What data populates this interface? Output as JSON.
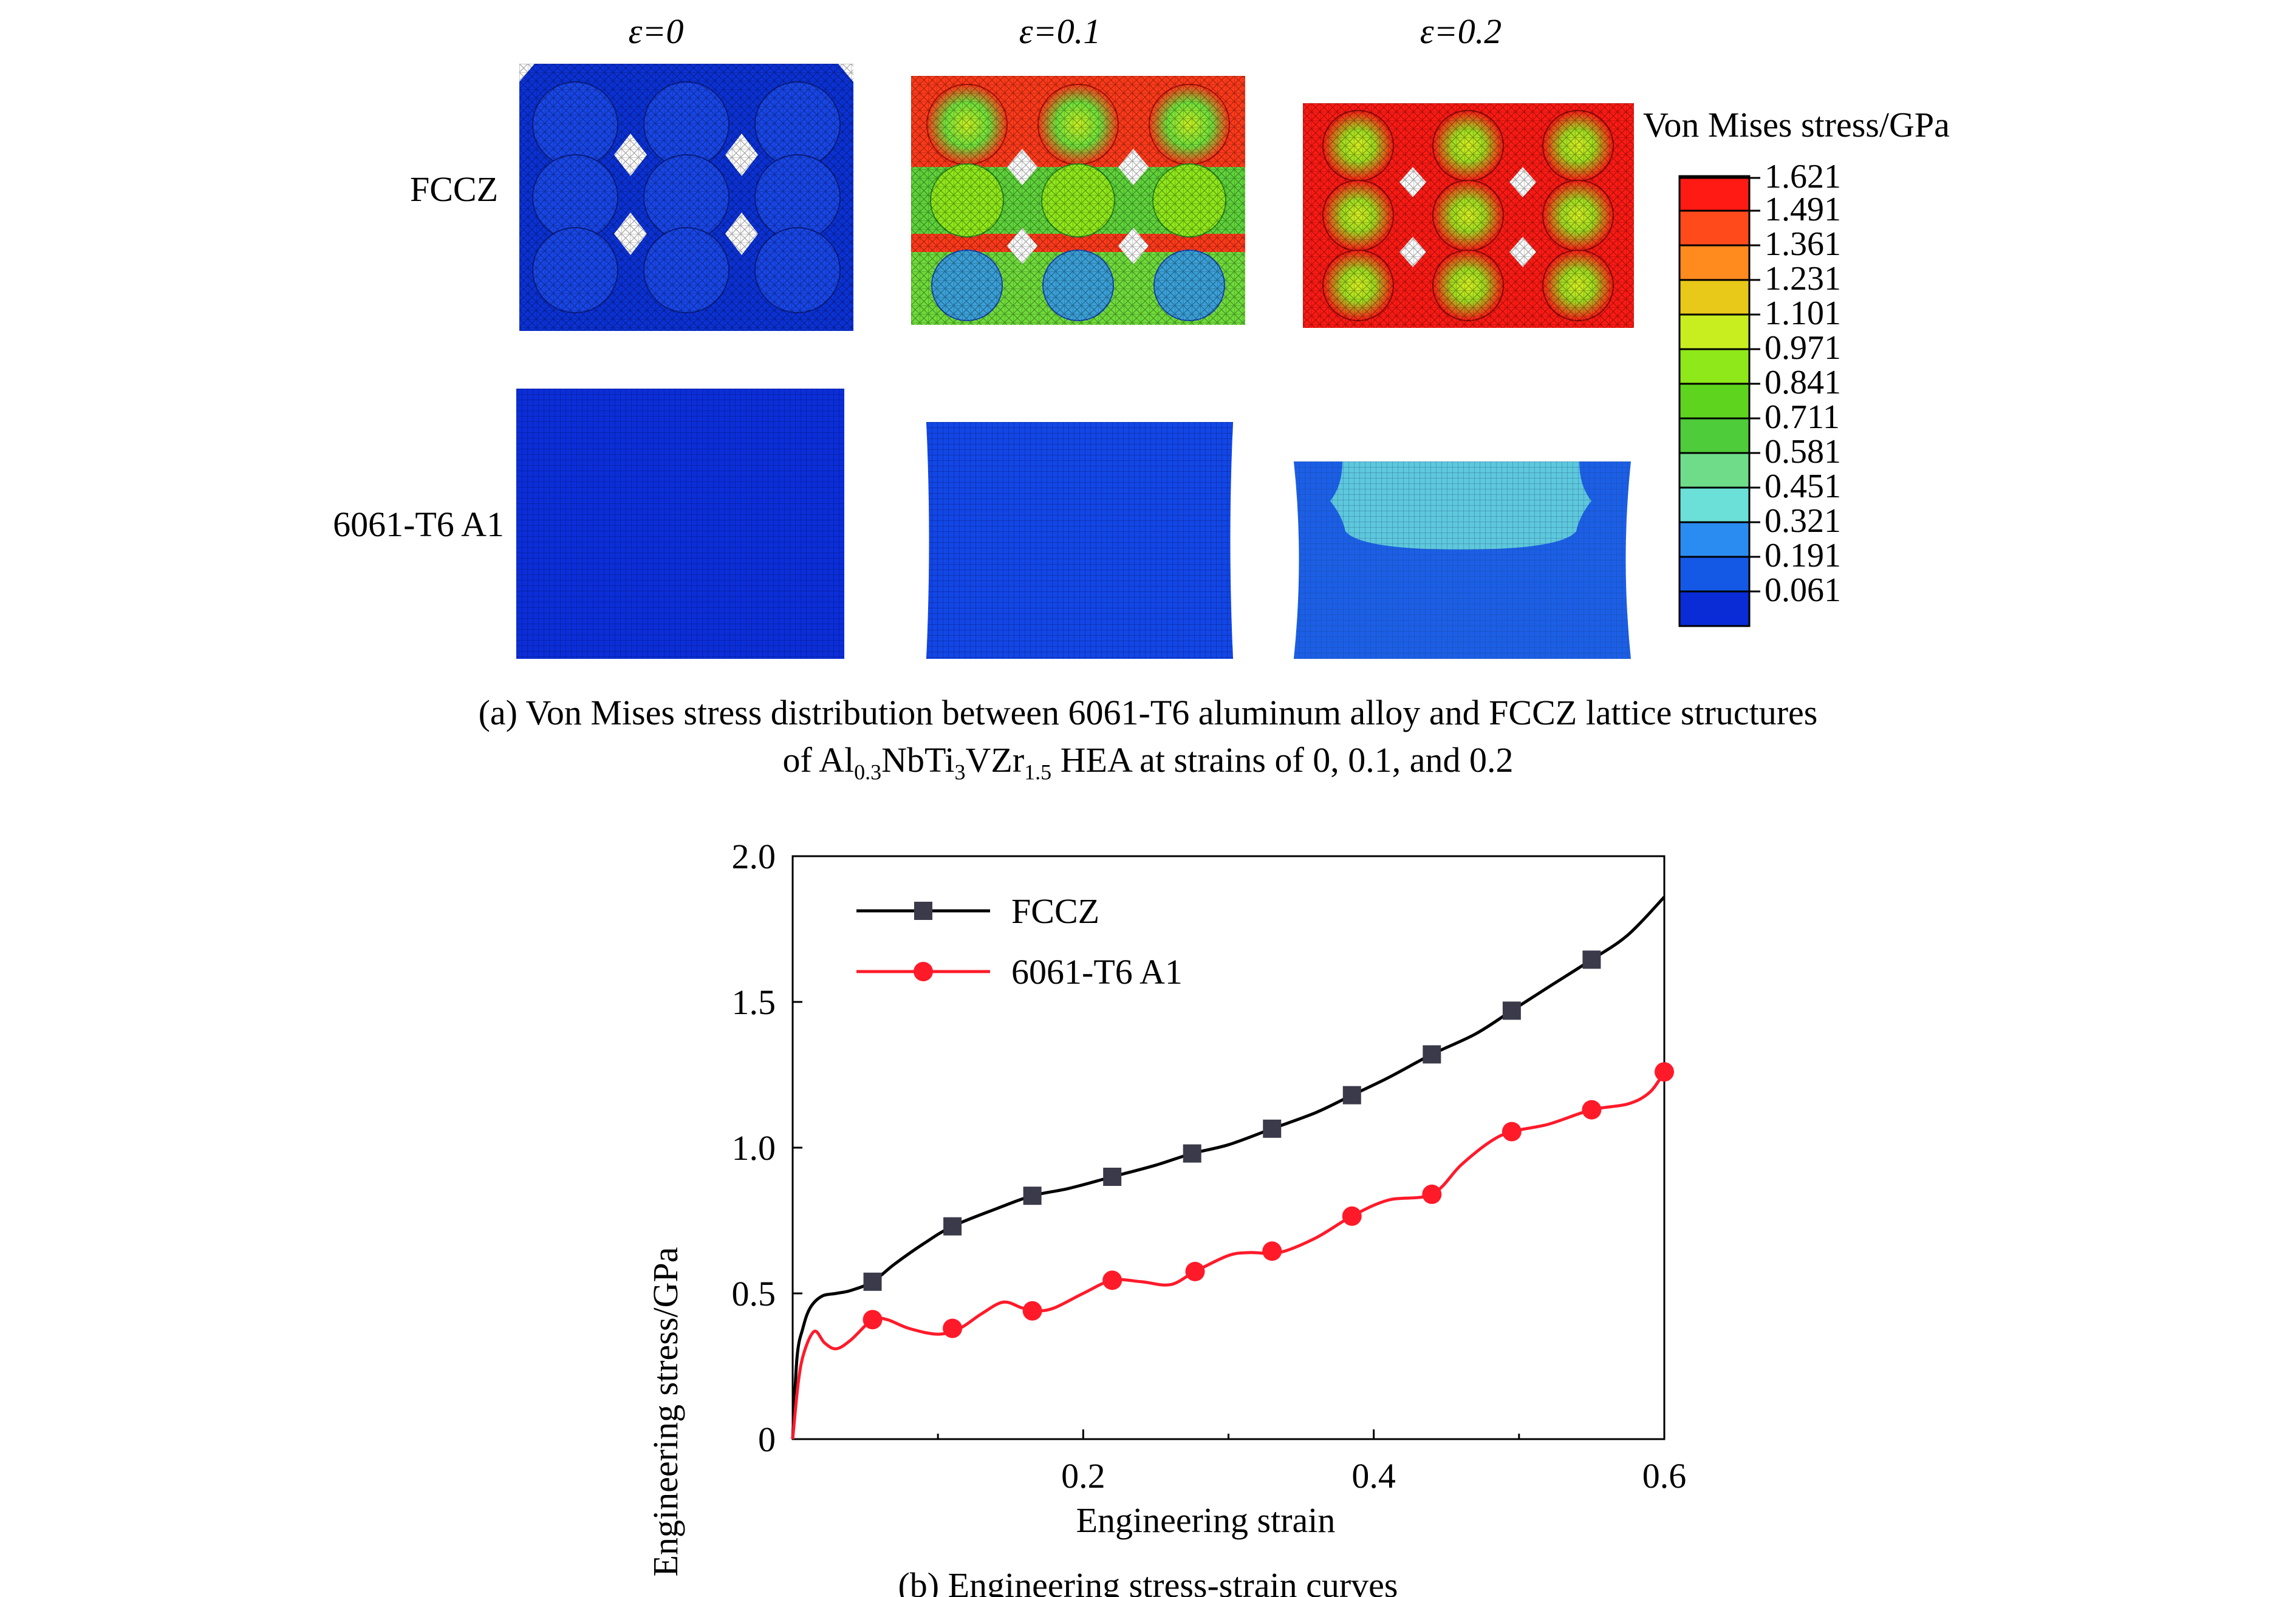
{
  "panel_a": {
    "strain_labels": [
      "ε=0",
      "ε=0.1",
      "ε=0.2"
    ],
    "row_labels": [
      "FCCZ",
      "6061-T6 A1"
    ],
    "colorbar": {
      "title": "Von Mises stress/GPa",
      "ticks": [
        "1.621",
        "1.491",
        "1.361",
        "1.231",
        "1.101",
        "0.971",
        "0.841",
        "0.711",
        "0.581",
        "0.451",
        "0.321",
        "0.191",
        "0.061"
      ],
      "colors": [
        "#ff1a14",
        "#ff4a1c",
        "#ff8a1e",
        "#e8c818",
        "#c8ee20",
        "#8fe81a",
        "#5fd41e",
        "#4fcc3a",
        "#6fdc8a",
        "#6ae0d8",
        "#2a8cf0",
        "#1458e6",
        "#0a2cd6"
      ]
    },
    "caption_line1": "(a) Von Mises stress distribution between 6061-T6 aluminum alloy and FCCZ lattice structures",
    "caption_line2_prefix": "of Al",
    "caption_sub1": "0.3",
    "caption_mid1": "NbTi",
    "caption_sub2": "3",
    "caption_mid2": "VZr",
    "caption_sub3": "1.5",
    "caption_line2_suffix": " HEA at strains of 0, 0.1, and 0.2"
  },
  "chart_data": {
    "type": "line",
    "title": "",
    "xlabel": "Engineering strain",
    "ylabel": "Engineering stress/GPa",
    "xlim": [
      0,
      0.6
    ],
    "ylim": [
      0,
      2.0
    ],
    "xticks": [
      0.2,
      0.4,
      0.6
    ],
    "xtick_labels": [
      "0.2",
      "0.4",
      "0.6"
    ],
    "yticks": [
      0,
      0.5,
      1.0,
      1.5,
      2.0
    ],
    "ytick_labels": [
      "0",
      "0.5",
      "1.0",
      "1.5",
      "2.0"
    ],
    "legend_position": "top-left",
    "series": [
      {
        "name": "FCCZ",
        "color": "#000000",
        "marker": "square",
        "marker_color": "#3a3a4a",
        "curve": [
          [
            0,
            0
          ],
          [
            0.003,
            0.28
          ],
          [
            0.007,
            0.38
          ],
          [
            0.012,
            0.45
          ],
          [
            0.02,
            0.49
          ],
          [
            0.03,
            0.5
          ],
          [
            0.04,
            0.51
          ],
          [
            0.055,
            0.54
          ],
          [
            0.07,
            0.6
          ],
          [
            0.09,
            0.67
          ],
          [
            0.11,
            0.73
          ],
          [
            0.14,
            0.79
          ],
          [
            0.165,
            0.835
          ],
          [
            0.19,
            0.86
          ],
          [
            0.22,
            0.9
          ],
          [
            0.25,
            0.94
          ],
          [
            0.275,
            0.98
          ],
          [
            0.3,
            1.01
          ],
          [
            0.33,
            1.065
          ],
          [
            0.36,
            1.12
          ],
          [
            0.385,
            1.18
          ],
          [
            0.41,
            1.24
          ],
          [
            0.44,
            1.32
          ],
          [
            0.47,
            1.39
          ],
          [
            0.495,
            1.47
          ],
          [
            0.52,
            1.55
          ],
          [
            0.55,
            1.645
          ],
          [
            0.575,
            1.73
          ],
          [
            0.6,
            1.86
          ]
        ],
        "markers": [
          [
            0.055,
            0.54
          ],
          [
            0.11,
            0.73
          ],
          [
            0.165,
            0.835
          ],
          [
            0.22,
            0.9
          ],
          [
            0.275,
            0.98
          ],
          [
            0.33,
            1.065
          ],
          [
            0.385,
            1.18
          ],
          [
            0.44,
            1.32
          ],
          [
            0.495,
            1.47
          ],
          [
            0.55,
            1.645
          ]
        ]
      },
      {
        "name": "6061-T6 A1",
        "color": "#ff1a2a",
        "marker": "circle",
        "marker_color": "#ff1a2a",
        "curve": [
          [
            0,
            0
          ],
          [
            0.004,
            0.2
          ],
          [
            0.008,
            0.3
          ],
          [
            0.015,
            0.37
          ],
          [
            0.022,
            0.33
          ],
          [
            0.03,
            0.31
          ],
          [
            0.04,
            0.34
          ],
          [
            0.055,
            0.41
          ],
          [
            0.065,
            0.41
          ],
          [
            0.08,
            0.38
          ],
          [
            0.1,
            0.36
          ],
          [
            0.115,
            0.38
          ],
          [
            0.13,
            0.43
          ],
          [
            0.145,
            0.47
          ],
          [
            0.158,
            0.45
          ],
          [
            0.168,
            0.44
          ],
          [
            0.18,
            0.45
          ],
          [
            0.2,
            0.5
          ],
          [
            0.22,
            0.545
          ],
          [
            0.24,
            0.54
          ],
          [
            0.26,
            0.53
          ],
          [
            0.277,
            0.575
          ],
          [
            0.3,
            0.63
          ],
          [
            0.315,
            0.64
          ],
          [
            0.335,
            0.64
          ],
          [
            0.36,
            0.69
          ],
          [
            0.385,
            0.765
          ],
          [
            0.41,
            0.82
          ],
          [
            0.44,
            0.84
          ],
          [
            0.46,
            0.94
          ],
          [
            0.48,
            1.02
          ],
          [
            0.495,
            1.055
          ],
          [
            0.52,
            1.08
          ],
          [
            0.55,
            1.13
          ],
          [
            0.575,
            1.15
          ],
          [
            0.59,
            1.19
          ],
          [
            0.6,
            1.26
          ]
        ],
        "markers": [
          [
            0.055,
            0.41
          ],
          [
            0.11,
            0.38
          ],
          [
            0.165,
            0.44
          ],
          [
            0.22,
            0.545
          ],
          [
            0.277,
            0.575
          ],
          [
            0.33,
            0.645
          ],
          [
            0.385,
            0.765
          ],
          [
            0.44,
            0.84
          ],
          [
            0.495,
            1.055
          ],
          [
            0.55,
            1.13
          ],
          [
            0.6,
            1.26
          ]
        ]
      }
    ],
    "caption": "(b) Engineering stress-strain curves"
  }
}
